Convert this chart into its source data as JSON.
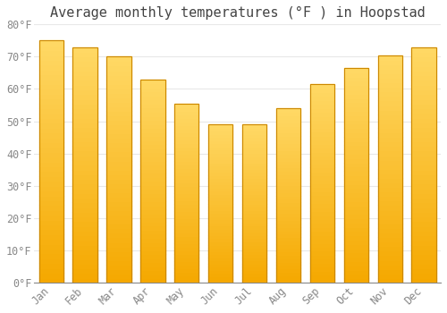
{
  "title": "Average monthly temperatures (°F ) in Hoopstad",
  "months": [
    "Jan",
    "Feb",
    "Mar",
    "Apr",
    "May",
    "Jun",
    "Jul",
    "Aug",
    "Sep",
    "Oct",
    "Nov",
    "Dec"
  ],
  "values": [
    75,
    73,
    70,
    63,
    55.5,
    49,
    49,
    54,
    61.5,
    66.5,
    70.5,
    73
  ],
  "bar_color_bottom": "#F5A800",
  "bar_color_top": "#FFD966",
  "bar_edge_color": "#CC8800",
  "ylim": [
    0,
    80
  ],
  "yticks": [
    0,
    10,
    20,
    30,
    40,
    50,
    60,
    70,
    80
  ],
  "ytick_labels": [
    "0°F",
    "10°F",
    "20°F",
    "30°F",
    "40°F",
    "50°F",
    "60°F",
    "70°F",
    "80°F"
  ],
  "plot_bg_color": "#FFFFFF",
  "fig_bg_color": "#FFFFFF",
  "grid_color": "#E8E8E8",
  "title_fontsize": 11,
  "tick_fontsize": 8.5,
  "tick_color": "#888888",
  "font_family": "monospace"
}
